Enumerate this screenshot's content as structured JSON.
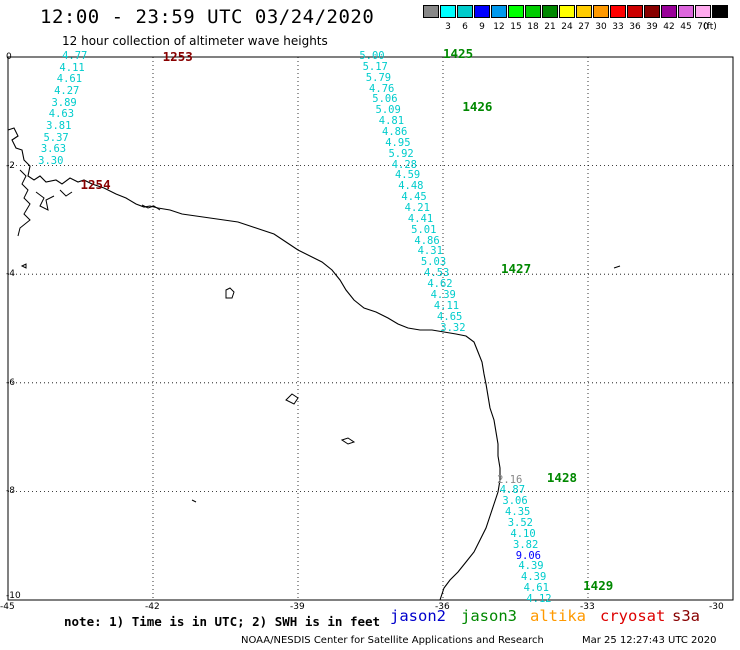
{
  "title": "12:00 - 23:59 UTC 03/24/2020",
  "subtitle": "12 hour collection of altimeter wave heights",
  "colorbar": {
    "unit": "(ft)",
    "bins": [
      {
        "label": "",
        "color": "#888888"
      },
      {
        "label": "3",
        "color": "#00ffff"
      },
      {
        "label": "6",
        "color": "#00cccc"
      },
      {
        "label": "9",
        "color": "#0000ff"
      },
      {
        "label": "12",
        "color": "#0099ee"
      },
      {
        "label": "15",
        "color": "#00ff00"
      },
      {
        "label": "18",
        "color": "#00cc00"
      },
      {
        "label": "21",
        "color": "#008800"
      },
      {
        "label": "24",
        "color": "#ffff00"
      },
      {
        "label": "27",
        "color": "#ffcc00"
      },
      {
        "label": "30",
        "color": "#ff9900"
      },
      {
        "label": "33",
        "color": "#ff0000"
      },
      {
        "label": "36",
        "color": "#cc0000"
      },
      {
        "label": "39",
        "color": "#880000"
      },
      {
        "label": "42",
        "color": "#990099"
      },
      {
        "label": "45",
        "color": "#dd66dd"
      },
      {
        "label": "70",
        "color": "#ffaaee"
      },
      {
        "label": "",
        "color": "#000000"
      }
    ]
  },
  "axes": {
    "lon_ticks": [
      "-45",
      "-42",
      "-39",
      "-36",
      "-33",
      "-30"
    ],
    "lat_ticks": [
      "0",
      "-2",
      "-4",
      "-6",
      "-8",
      "-10"
    ],
    "lon_range": [
      -45,
      -30
    ],
    "lat_range": [
      -10,
      0
    ]
  },
  "passes": [
    {
      "label": "1253",
      "color": "#880000",
      "lon": -41.8,
      "lat": 0.0
    },
    {
      "label": "1254",
      "color": "#880000",
      "lon": -43.5,
      "lat": -2.35
    },
    {
      "label": "1425",
      "color": "#008800",
      "lon": -36.0,
      "lat": 0.05
    },
    {
      "label": "1426",
      "color": "#008800",
      "lon": -35.6,
      "lat": -0.92
    },
    {
      "label": "1427",
      "color": "#008800",
      "lon": -34.8,
      "lat": -3.9
    },
    {
      "label": "1428",
      "color": "#008800",
      "lon": -33.85,
      "lat": -7.75
    },
    {
      "label": "1429",
      "color": "#008800",
      "lon": -33.1,
      "lat": -9.75
    }
  ],
  "tracks": [
    {
      "id": "track-1253",
      "lon_start": -43.55,
      "lat_start": 0.0,
      "lon_step": -0.055,
      "lat_step": -0.215,
      "values": [
        "4.77",
        "4.11",
        "4.61",
        "4.27",
        "3.89",
        "4.63",
        "3.81",
        "5.37",
        "3.63",
        "3.30"
      ],
      "colors": [
        "#00cccc",
        "#00cccc",
        "#00cccc",
        "#00cccc",
        "#00cccc",
        "#00cccc",
        "#00cccc",
        "#00cccc",
        "#00cccc",
        "#00cccc"
      ]
    },
    {
      "id": "track-1425",
      "lon_start": -37.4,
      "lat_start": 0.0,
      "lon_step": 0.067,
      "lat_step": -0.2,
      "values": [
        "5.00",
        "5.17",
        "5.79",
        "4.76",
        "5.06",
        "5.09",
        "4.81",
        "4.86",
        "4.95",
        "5.92",
        "4.28",
        "4.59",
        "4.48",
        "4.45",
        "4.21",
        "4.41",
        "5.01",
        "4.86",
        "4.31",
        "5.03",
        "4.53",
        "4.62",
        "4.39",
        "4.11",
        "4.65",
        "3.32"
      ],
      "colors": [
        "#00cccc",
        "#00cccc",
        "#00cccc",
        "#00cccc",
        "#00cccc",
        "#00cccc",
        "#00cccc",
        "#00cccc",
        "#00cccc",
        "#00cccc",
        "#00cccc",
        "#00cccc",
        "#00cccc",
        "#00cccc",
        "#00cccc",
        "#00cccc",
        "#00cccc",
        "#00cccc",
        "#00cccc",
        "#00cccc",
        "#00cccc",
        "#00cccc",
        "#00cccc",
        "#00cccc",
        "#00cccc",
        "#00cccc"
      ]
    },
    {
      "id": "track-1428",
      "lon_start": -34.55,
      "lat_start": -7.8,
      "lon_step": 0.055,
      "lat_step": -0.2,
      "values": [
        "2.16",
        "4.87",
        "3.06",
        "4.35",
        "3.52",
        "4.10",
        "3.82",
        "9.06",
        "4.39",
        "4.39",
        "4.61",
        "4.12"
      ],
      "colors": [
        "#888888",
        "#00cccc",
        "#00cccc",
        "#00cccc",
        "#00cccc",
        "#00cccc",
        "#00cccc",
        "#0000ff",
        "#00cccc",
        "#00cccc",
        "#00cccc",
        "#00cccc"
      ]
    }
  ],
  "note": "note: 1) Time is in UTC; 2) SWH is in feet",
  "legend": [
    {
      "label": "jason2",
      "color": "#0000cc"
    },
    {
      "label": "jason3",
      "color": "#008800"
    },
    {
      "label": "altika",
      "color": "#ff9900"
    },
    {
      "label": "cryosat",
      "color": "#dd0000"
    },
    {
      "label": "s3a",
      "color": "#880000"
    }
  ],
  "footer_left": "NOAA/NESDIS Center for Satellite Applications and Research",
  "footer_right": "Mar 25 12:27:43 UTC 2020"
}
